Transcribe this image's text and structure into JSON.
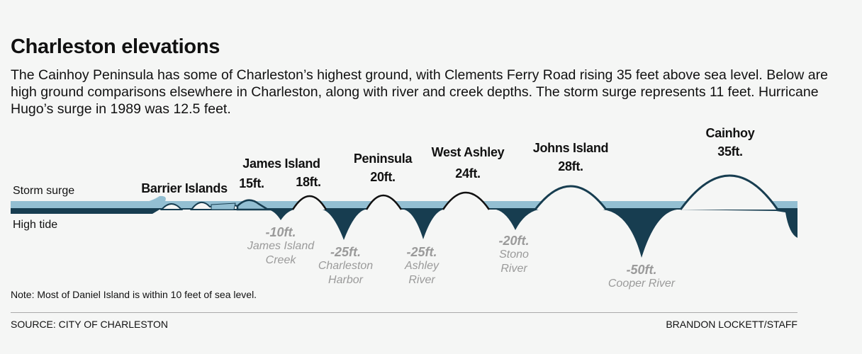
{
  "title": "Charleston elevations",
  "description": "The Cainhoy Peninsula has some of Charleston’s highest ground, with Clements Ferry Road rising 35 feet above sea level. Below are high ground comparisons elsewhere in Charleston, along with river and creek depths. The storm surge represents 11 feet. Hurricane Hugo’s surge in 1989 was 12.5 feet.",
  "legend": {
    "storm_surge": "Storm surge",
    "high_tide": "High tide"
  },
  "colors": {
    "storm_surge": "#93bfd2",
    "high_tide": "#173d50",
    "depth_text": "#9a9a9a"
  },
  "elevations": [
    {
      "name": "Barrier Islands",
      "value": ""
    },
    {
      "name": "James Island",
      "value": "15ft."
    },
    {
      "name": "",
      "value": "18ft."
    },
    {
      "name": "Peninsula",
      "value": "20ft."
    },
    {
      "name": "West Ashley",
      "value": "24ft."
    },
    {
      "name": "Johns Island",
      "value": "28ft."
    },
    {
      "name": "Cainhoy",
      "value": "35ft."
    }
  ],
  "depths": [
    {
      "value": "-10ft.",
      "name1": "James Island",
      "name2": "Creek"
    },
    {
      "value": "-25ft.",
      "name1": "Charleston",
      "name2": "Harbor"
    },
    {
      "value": "-25ft.",
      "name1": "Ashley",
      "name2": "River"
    },
    {
      "value": "-20ft.",
      "name1": "Stono",
      "name2": "River"
    },
    {
      "value": "-50ft.",
      "name1": "Cooper River",
      "name2": ""
    }
  ],
  "note": "Note: Most of Daniel Island is within 10 feet of sea level.",
  "source": "SOURCE: CITY OF CHARLESTON",
  "credit": "BRANDON LOCKETT/STAFF"
}
